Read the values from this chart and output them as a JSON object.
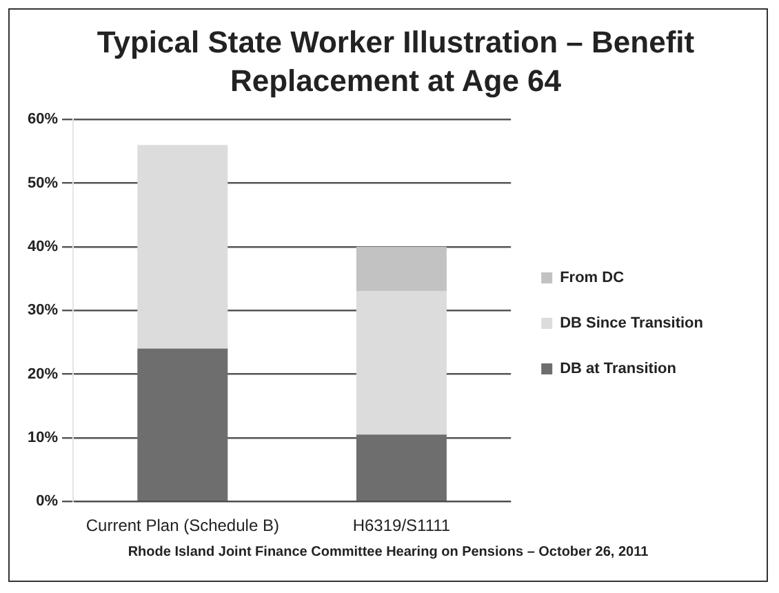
{
  "chart_data": {
    "type": "bar",
    "title": "Typical State Worker Illustration – Benefit Replacement at Age 64",
    "categories": [
      "Current Plan (Schedule B)",
      "H6319/S1111"
    ],
    "series": [
      {
        "name": "DB at Transition",
        "color": "#6e6e6e",
        "values": [
          24,
          10.5
        ]
      },
      {
        "name": "DB Since Transition",
        "color": "#dcdcdc",
        "values": [
          32,
          22.5
        ]
      },
      {
        "name": "From DC",
        "color": "#c2c2c2",
        "values": [
          0,
          7
        ]
      }
    ],
    "stacked": true,
    "ylim": [
      0,
      60
    ],
    "yticks": [
      {
        "value": 0,
        "label": "0%"
      },
      {
        "value": 10,
        "label": "10%"
      },
      {
        "value": 20,
        "label": "20%"
      },
      {
        "value": 30,
        "label": "30%"
      },
      {
        "value": 40,
        "label": "40%"
      },
      {
        "value": 50,
        "label": "50%"
      },
      {
        "value": 60,
        "label": "60%"
      }
    ],
    "grid": "y",
    "legend": "right",
    "annotations": [
      "Rhode Island Joint Finance Committee Hearing on Pensions –  October 26, 2011"
    ]
  }
}
